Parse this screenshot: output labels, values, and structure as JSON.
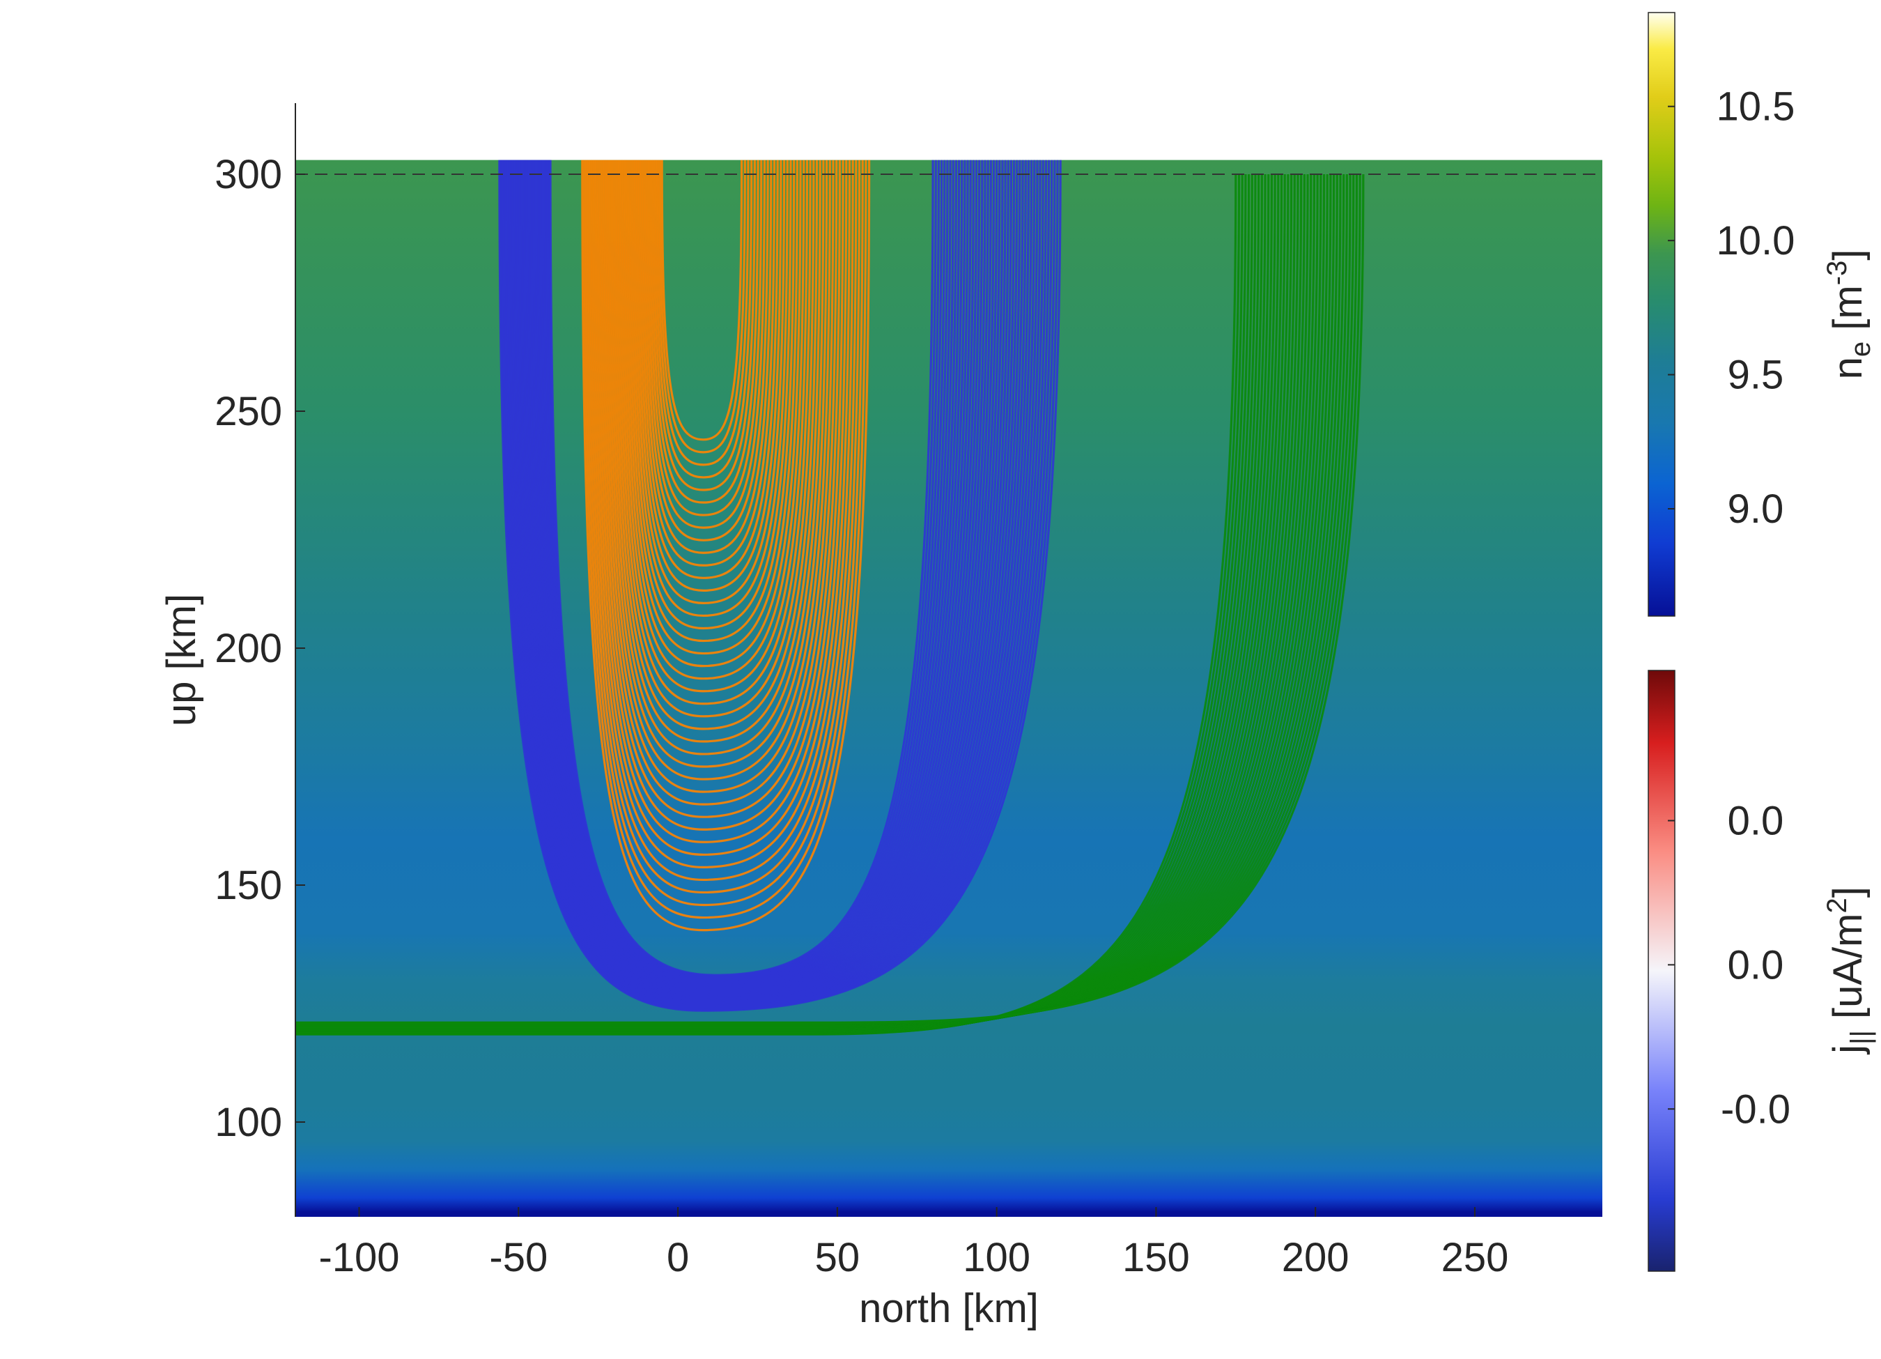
{
  "chart_data": {
    "type": "line",
    "xlabel": "north [km]",
    "ylabel": "up [km]",
    "xlim": [
      -120,
      290
    ],
    "ylim": [
      80,
      315
    ],
    "xticks": [
      -100,
      -50,
      0,
      50,
      100,
      150,
      200,
      250
    ],
    "xtick_labels": [
      "-100",
      "-50",
      "0",
      "50",
      "100",
      "150",
      "200",
      "250"
    ],
    "yticks": [
      100,
      150,
      200,
      250,
      300
    ],
    "ytick_labels": [
      "100",
      "150",
      "200",
      "250",
      "300"
    ],
    "grid": false,
    "reference_line": {
      "y": 300,
      "style": "dashed"
    },
    "background_field": {
      "name": "n_e",
      "profile": [
        {
          "alt": 81,
          "value": 8.6
        },
        {
          "alt": 84,
          "value": 8.9
        },
        {
          "alt": 90,
          "value": 9.25
        },
        {
          "alt": 96,
          "value": 9.45
        },
        {
          "alt": 105,
          "value": 9.52
        },
        {
          "alt": 120,
          "value": 9.55
        },
        {
          "alt": 130,
          "value": 9.48
        },
        {
          "alt": 140,
          "value": 9.3
        },
        {
          "alt": 160,
          "value": 9.28
        },
        {
          "alt": 180,
          "value": 9.45
        },
        {
          "alt": 210,
          "value": 9.62
        },
        {
          "alt": 250,
          "value": 9.8
        },
        {
          "alt": 303,
          "value": 9.95
        }
      ]
    },
    "colorbars": [
      {
        "label": "n_e [m^-3]",
        "label_main": "n",
        "label_sub": "e",
        "label_rest": " [m",
        "label_sup": "-3",
        "label_end": "]",
        "range": [
          8.6,
          10.85
        ],
        "ticks": [
          9.0,
          9.5,
          10.0,
          10.5
        ],
        "tick_labels": [
          "9.0",
          "9.5",
          "10.0",
          "10.5"
        ],
        "colormap": "parula"
      },
      {
        "label": "j_|| [uA/m^2]",
        "label_main": "j",
        "label_sub": "||",
        "label_rest": " [uA/m",
        "label_sup": "2",
        "label_end": "]",
        "tick_labels": [
          "-0.0",
          "0.0",
          "0.0"
        ],
        "tick_fractions": [
          0.27,
          0.51,
          0.75
        ],
        "colormap": "blue-white-red"
      }
    ],
    "series": [
      {
        "color": "#2f34d5",
        "shape": "u",
        "lines": 45,
        "top": 303,
        "left_x": [
          -56,
          -40
        ],
        "right_x": [
          80,
          120
        ],
        "bottom_y": [
          123.5,
          131
        ],
        "center_x": [
          8,
          12
        ]
      },
      {
        "color": "#ff8400",
        "shape": "u",
        "lines": 40,
        "top": 303,
        "left_x": [
          -30,
          -5
        ],
        "right_x": [
          20,
          60
        ],
        "bottom_y": [
          140.5,
          244
        ],
        "center_x": [
          8,
          8
        ]
      },
      {
        "color": "#0a8a0a",
        "shape": "j",
        "lines": 40,
        "top": 300,
        "right_x": [
          175,
          215
        ],
        "bottom_y": [
          118.5,
          121
        ],
        "knee_x": [
          40,
          50
        ]
      }
    ]
  }
}
